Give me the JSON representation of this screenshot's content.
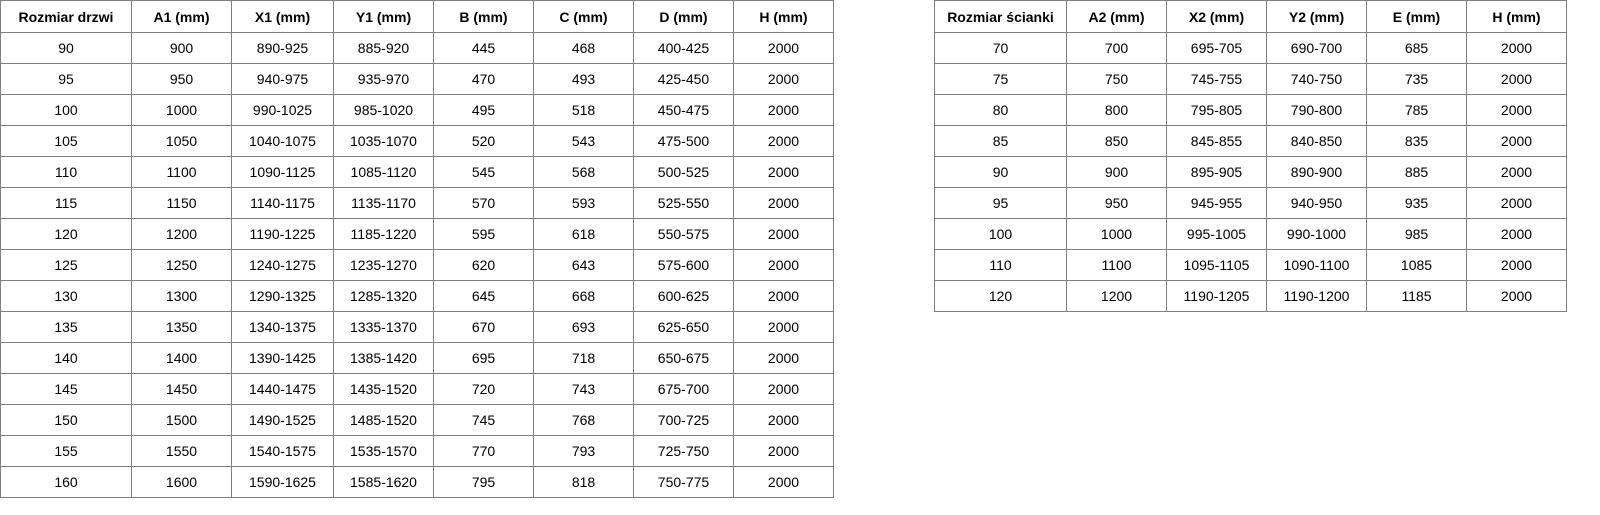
{
  "doors_table": {
    "headers": [
      "Rozmiar drzwi",
      "A1 (mm)",
      "X1 (mm)",
      "Y1 (mm)",
      "B (mm)",
      "C (mm)",
      "D (mm)",
      "H (mm)"
    ],
    "rows": [
      [
        "90",
        "900",
        "890-925",
        "885-920",
        "445",
        "468",
        "400-425",
        "2000"
      ],
      [
        "95",
        "950",
        "940-975",
        "935-970",
        "470",
        "493",
        "425-450",
        "2000"
      ],
      [
        "100",
        "1000",
        "990-1025",
        "985-1020",
        "495",
        "518",
        "450-475",
        "2000"
      ],
      [
        "105",
        "1050",
        "1040-1075",
        "1035-1070",
        "520",
        "543",
        "475-500",
        "2000"
      ],
      [
        "110",
        "1100",
        "1090-1125",
        "1085-1120",
        "545",
        "568",
        "500-525",
        "2000"
      ],
      [
        "115",
        "1150",
        "1140-1175",
        "1135-1170",
        "570",
        "593",
        "525-550",
        "2000"
      ],
      [
        "120",
        "1200",
        "1190-1225",
        "1185-1220",
        "595",
        "618",
        "550-575",
        "2000"
      ],
      [
        "125",
        "1250",
        "1240-1275",
        "1235-1270",
        "620",
        "643",
        "575-600",
        "2000"
      ],
      [
        "130",
        "1300",
        "1290-1325",
        "1285-1320",
        "645",
        "668",
        "600-625",
        "2000"
      ],
      [
        "135",
        "1350",
        "1340-1375",
        "1335-1370",
        "670",
        "693",
        "625-650",
        "2000"
      ],
      [
        "140",
        "1400",
        "1390-1425",
        "1385-1420",
        "695",
        "718",
        "650-675",
        "2000"
      ],
      [
        "145",
        "1450",
        "1440-1475",
        "1435-1520",
        "720",
        "743",
        "675-700",
        "2000"
      ],
      [
        "150",
        "1500",
        "1490-1525",
        "1485-1520",
        "745",
        "768",
        "700-725",
        "2000"
      ],
      [
        "155",
        "1550",
        "1540-1575",
        "1535-1570",
        "770",
        "793",
        "725-750",
        "2000"
      ],
      [
        "160",
        "1600",
        "1590-1625",
        "1585-1620",
        "795",
        "818",
        "750-775",
        "2000"
      ]
    ]
  },
  "walls_table": {
    "headers": [
      "Rozmiar ścianki",
      "A2 (mm)",
      "X2 (mm)",
      "Y2 (mm)",
      "E (mm)",
      "H (mm)"
    ],
    "rows": [
      [
        "70",
        "700",
        "695-705",
        "690-700",
        "685",
        "2000"
      ],
      [
        "75",
        "750",
        "745-755",
        "740-750",
        "735",
        "2000"
      ],
      [
        "80",
        "800",
        "795-805",
        "790-800",
        "785",
        "2000"
      ],
      [
        "85",
        "850",
        "845-855",
        "840-850",
        "835",
        "2000"
      ],
      [
        "90",
        "900",
        "895-905",
        "890-900",
        "885",
        "2000"
      ],
      [
        "95",
        "950",
        "945-955",
        "940-950",
        "935",
        "2000"
      ],
      [
        "100",
        "1000",
        "995-1005",
        "990-1000",
        "985",
        "2000"
      ],
      [
        "110",
        "1100",
        "1095-1105",
        "1090-1100",
        "1085",
        "2000"
      ],
      [
        "120",
        "1200",
        "1190-1205",
        "1190-1200",
        "1185",
        "2000"
      ]
    ]
  }
}
